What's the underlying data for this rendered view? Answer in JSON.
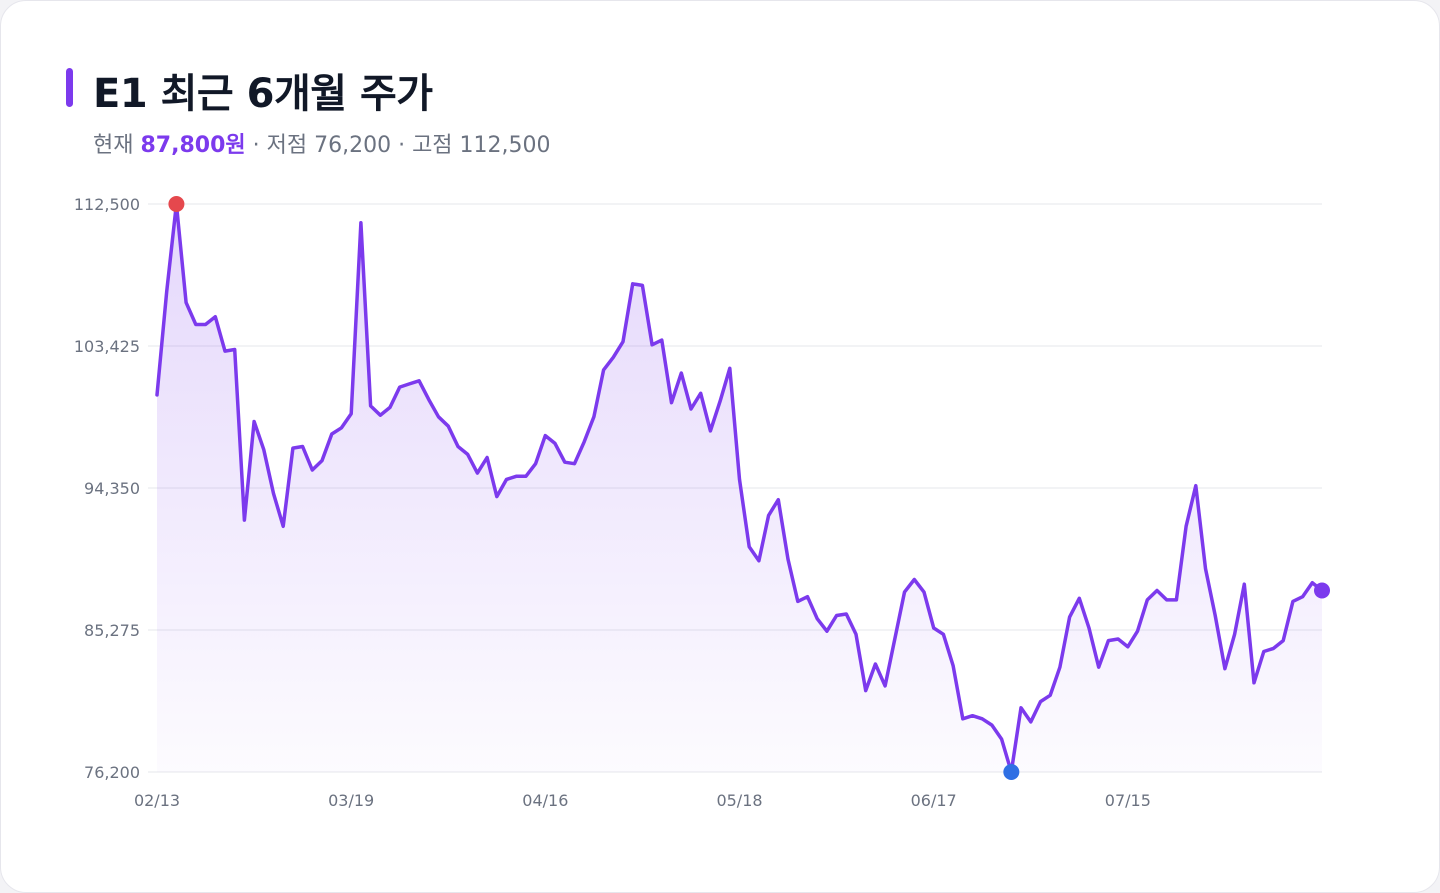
{
  "header": {
    "title": "E1 최근 6개월 주가",
    "current_label": "현재",
    "current_value": "87,800원",
    "low_text": "· 저점 76,200",
    "high_text": "· 고점 112,500"
  },
  "colors": {
    "accent": "#7c3aed",
    "line": "#7c3aed",
    "area_fill": "#ede6fc",
    "grid": "#e5e7eb",
    "high_marker": "#e5484d",
    "low_marker": "#2f6fe4",
    "last_marker": "#7c3aed"
  },
  "chart_data": {
    "type": "area",
    "title": "E1 최근 6개월 주가",
    "xlabel": "",
    "ylabel": "",
    "ylim": [
      76200,
      112500
    ],
    "yticks": [
      76200,
      85275,
      94350,
      103425,
      112500
    ],
    "ytick_labels": [
      "76,200",
      "85,275",
      "94,350",
      "103,425",
      "112,500"
    ],
    "x_ticks": [
      {
        "index": 0,
        "label": "02/13"
      },
      {
        "index": 20,
        "label": "03/19"
      },
      {
        "index": 40,
        "label": "04/16"
      },
      {
        "index": 60,
        "label": "05/18"
      },
      {
        "index": 80,
        "label": "06/17"
      },
      {
        "index": 100,
        "label": "07/15"
      }
    ],
    "grid": true,
    "series": [
      {
        "values": [
          100300,
          106900,
          112500,
          106200,
          104800,
          104800,
          105300,
          103100,
          103200,
          92300,
          98600,
          96800,
          94000,
          91900,
          96900,
          97000,
          95500,
          96100,
          97800,
          98200,
          99100,
          111300,
          99600,
          99000,
          99500,
          100800,
          101000,
          101200,
          100000,
          98900,
          98300,
          97000,
          96500,
          95300,
          96300,
          93800,
          94900,
          95100,
          95100,
          95900,
          97700,
          97200,
          96000,
          95900,
          97300,
          98900,
          101900,
          102700,
          103700,
          107400,
          107300,
          103500,
          103800,
          99800,
          101700,
          99400,
          100400,
          98000,
          99900,
          102000,
          94900,
          90600,
          89700,
          92600,
          93600,
          89800,
          87100,
          87400,
          86000,
          85200,
          86200,
          86300,
          85000,
          81400,
          83100,
          81700,
          84700,
          87700,
          88500,
          87700,
          85400,
          85000,
          83000,
          79600,
          79800,
          79600,
          79200,
          78300,
          76200,
          80300,
          79400,
          80700,
          81100,
          82900,
          86100,
          87300,
          85400,
          82900,
          84600,
          84700,
          84200,
          85200,
          87200,
          87800,
          87200,
          87200,
          91900,
          94500,
          89200,
          86200,
          82800,
          85000,
          88200,
          81900,
          83900,
          84100,
          84600,
          87100,
          87400,
          88300,
          87800
        ]
      }
    ]
  }
}
